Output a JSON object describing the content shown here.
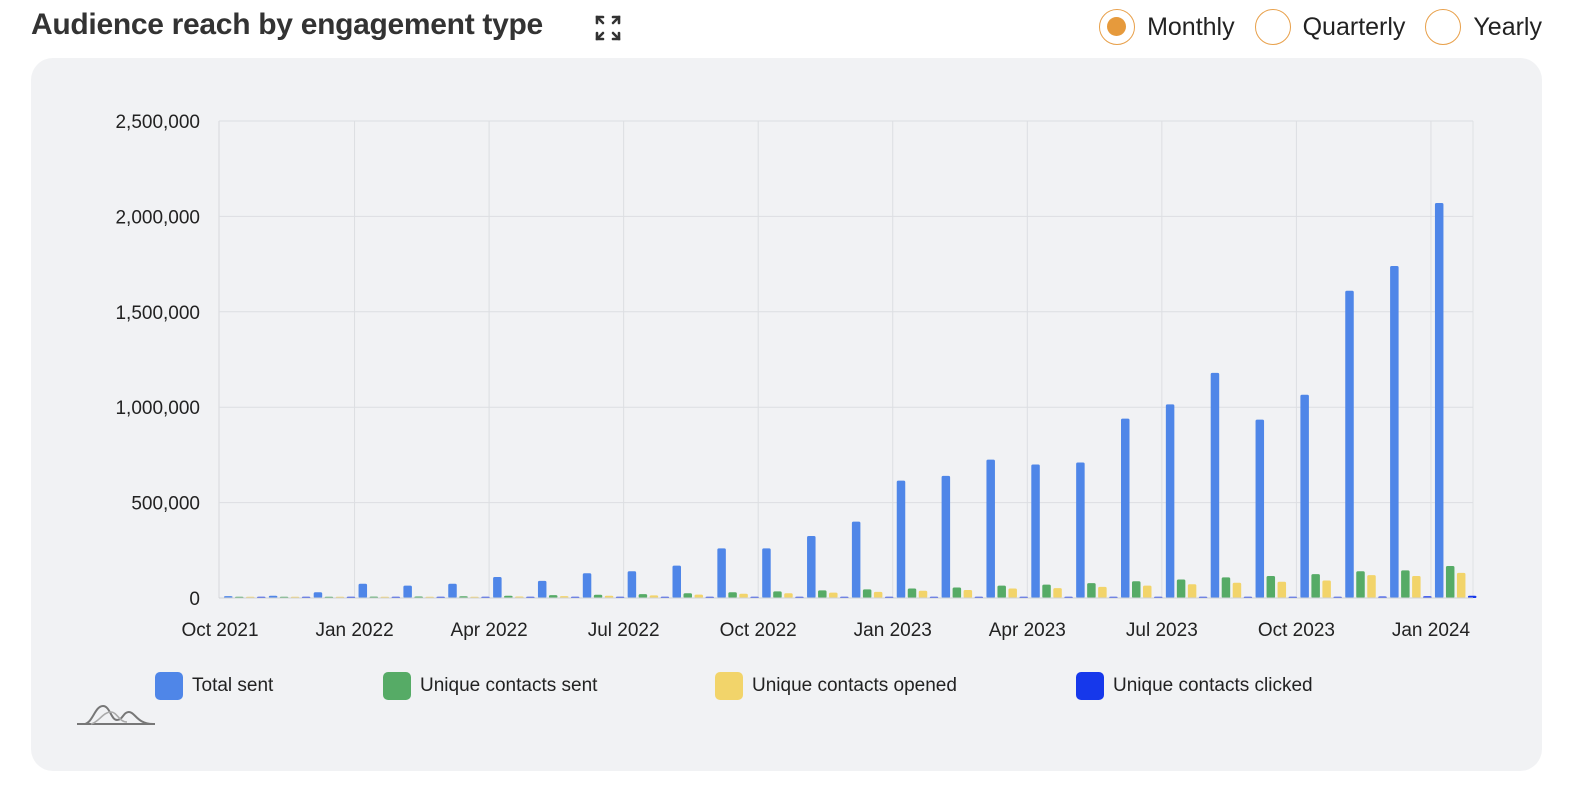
{
  "header": {
    "title": "Audience reach by engagement type",
    "expand_icon": "expand-icon"
  },
  "period_selector": {
    "options": [
      "Monthly",
      "Quarterly",
      "Yearly"
    ],
    "selected": "Monthly"
  },
  "colors": {
    "accent": "#e69a3c",
    "panel_bg": "#f1f2f4"
  },
  "chart_data": {
    "type": "bar",
    "title": "",
    "xlabel": "",
    "ylabel": "",
    "ylim": [
      0,
      2500000
    ],
    "yticks": [
      0,
      500000,
      1000000,
      1500000,
      2000000,
      2500000
    ],
    "ytick_labels": [
      "0",
      "500,000",
      "1,000,000",
      "1,500,000",
      "2,000,000",
      "2,500,000"
    ],
    "xtick_labels": [
      "Oct 2021",
      "Jan 2022",
      "Apr 2022",
      "Jul 2022",
      "Oct 2022",
      "Jan 2023",
      "Apr 2023",
      "Jul 2023",
      "Oct 2023",
      "Jan 2024"
    ],
    "categories": [
      "Oct 2021",
      "Nov 2021",
      "Dec 2021",
      "Jan 2022",
      "Feb 2022",
      "Mar 2022",
      "Apr 2022",
      "May 2022",
      "Jun 2022",
      "Jul 2022",
      "Aug 2022",
      "Sep 2022",
      "Oct 2022",
      "Nov 2022",
      "Dec 2022",
      "Jan 2023",
      "Feb 2023",
      "Mar 2023",
      "Apr 2023",
      "May 2023",
      "Jun 2023",
      "Jul 2023",
      "Aug 2023",
      "Sep 2023",
      "Oct 2023",
      "Nov 2023",
      "Dec 2023",
      "Jan 2024"
    ],
    "grid": true,
    "legend_position": "bottom",
    "series": [
      {
        "name": "Total sent",
        "color": "#4f86e8",
        "values": [
          10000,
          12000,
          30000,
          75000,
          65000,
          75000,
          110000,
          90000,
          130000,
          140000,
          170000,
          260000,
          260000,
          325000,
          400000,
          615000,
          640000,
          725000,
          700000,
          710000,
          940000,
          1015000,
          1180000,
          935000,
          1065000,
          1610000,
          1740000,
          2070000
        ]
      },
      {
        "name": "Unique contacts sent",
        "color": "#56ab66",
        "values": [
          4000,
          5000,
          6000,
          7000,
          8000,
          9000,
          12000,
          15000,
          17000,
          20000,
          25000,
          30000,
          35000,
          40000,
          45000,
          50000,
          55000,
          65000,
          70000,
          78000,
          88000,
          97000,
          108000,
          115000,
          125000,
          140000,
          145000,
          168000
        ]
      },
      {
        "name": "Unique contacts opened",
        "color": "#f2d46a",
        "values": [
          2000,
          3000,
          4000,
          5000,
          5000,
          6000,
          8000,
          10000,
          12000,
          14000,
          18000,
          22000,
          25000,
          28000,
          32000,
          38000,
          42000,
          50000,
          52000,
          58000,
          65000,
          72000,
          80000,
          85000,
          92000,
          120000,
          115000,
          132000
        ]
      },
      {
        "name": "Unique contacts clicked",
        "color": "#1638eb",
        "values": [
          500,
          500,
          500,
          500,
          500,
          500,
          500,
          800,
          800,
          800,
          1000,
          1000,
          1000,
          1500,
          1500,
          2000,
          2000,
          3000,
          3000,
          3000,
          4000,
          4000,
          5000,
          5000,
          6000,
          8000,
          9000,
          12000
        ]
      }
    ]
  },
  "logo_icon": "mountains-logo-icon"
}
